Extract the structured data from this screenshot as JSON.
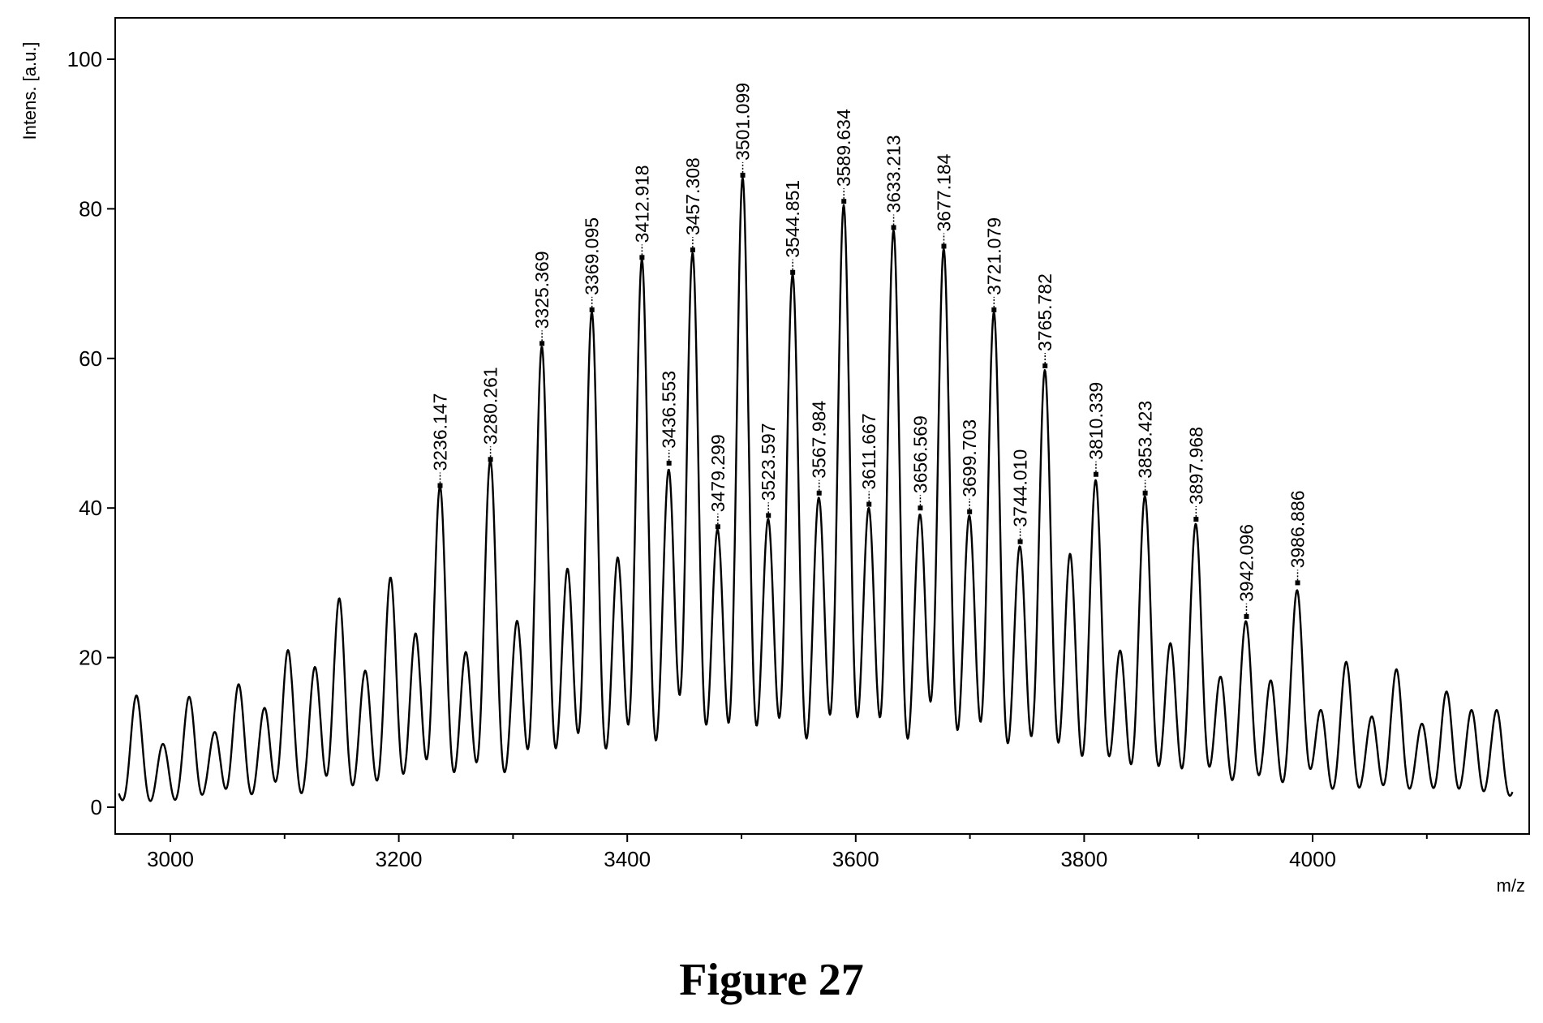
{
  "figure": {
    "caption": "Figure 27"
  },
  "chart_data": {
    "type": "line",
    "xlabel": "m/z",
    "ylabel": "Intens. [a.u.]",
    "xlim": [
      2955,
      4175
    ],
    "ylim": [
      -3,
      105
    ],
    "x_ticks": [
      3000,
      3200,
      3400,
      3600,
      3800,
      4000
    ],
    "y_ticks": [
      0,
      20,
      40,
      60,
      80,
      100
    ],
    "grid": false,
    "labeled_peaks": [
      {
        "label": "3236.147",
        "x": 3236.147,
        "y": 43
      },
      {
        "label": "3280.261",
        "x": 3280.261,
        "y": 46.5
      },
      {
        "label": "3325.369",
        "x": 3325.369,
        "y": 62
      },
      {
        "label": "3369.095",
        "x": 3369.095,
        "y": 66.5
      },
      {
        "label": "3412.918",
        "x": 3412.918,
        "y": 73.5
      },
      {
        "label": "3436.553",
        "x": 3436.553,
        "y": 46
      },
      {
        "label": "3457.308",
        "x": 3457.308,
        "y": 74.5
      },
      {
        "label": "3479.299",
        "x": 3479.299,
        "y": 37.5
      },
      {
        "label": "3501.099",
        "x": 3501.099,
        "y": 84.5
      },
      {
        "label": "3523.597",
        "x": 3523.597,
        "y": 39
      },
      {
        "label": "3544.851",
        "x": 3544.851,
        "y": 71.5
      },
      {
        "label": "3567.984",
        "x": 3567.984,
        "y": 42
      },
      {
        "label": "3589.634",
        "x": 3589.634,
        "y": 81
      },
      {
        "label": "3611.667",
        "x": 3611.667,
        "y": 40.5
      },
      {
        "label": "3633.213",
        "x": 3633.213,
        "y": 77.5
      },
      {
        "label": "3656.569",
        "x": 3656.569,
        "y": 40
      },
      {
        "label": "3677.184",
        "x": 3677.184,
        "y": 75
      },
      {
        "label": "3699.703",
        "x": 3699.703,
        "y": 39.5
      },
      {
        "label": "3721.079",
        "x": 3721.079,
        "y": 66.5
      },
      {
        "label": "3744.010",
        "x": 3744.01,
        "y": 35.5
      },
      {
        "label": "3765.782",
        "x": 3765.782,
        "y": 59
      },
      {
        "label": "3810.339",
        "x": 3810.339,
        "y": 44.5
      },
      {
        "label": "3853.423",
        "x": 3853.423,
        "y": 42
      },
      {
        "label": "3897.968",
        "x": 3897.968,
        "y": 38.5
      },
      {
        "label": "3942.096",
        "x": 3942.096,
        "y": 25.5
      },
      {
        "label": "3986.886",
        "x": 3986.886,
        "y": 30
      }
    ],
    "minor_peaks": [
      {
        "x": 2970,
        "y": 15
      },
      {
        "x": 2994,
        "y": 8.5
      },
      {
        "x": 3017,
        "y": 15
      },
      {
        "x": 3040,
        "y": 10.5
      },
      {
        "x": 3060,
        "y": 16.5
      },
      {
        "x": 3083,
        "y": 13.5
      },
      {
        "x": 3103,
        "y": 21
      },
      {
        "x": 3127,
        "y": 19
      },
      {
        "x": 3148,
        "y": 28
      },
      {
        "x": 3171,
        "y": 18.5
      },
      {
        "x": 3193,
        "y": 31
      },
      {
        "x": 3215,
        "y": 23.5
      },
      {
        "x": 3259,
        "y": 21
      },
      {
        "x": 3304,
        "y": 25.5
      },
      {
        "x": 3348,
        "y": 32.5
      },
      {
        "x": 3392,
        "y": 34
      },
      {
        "x": 3788,
        "y": 34.5
      },
      {
        "x": 3832,
        "y": 21.5
      },
      {
        "x": 3876,
        "y": 22.5
      },
      {
        "x": 3920,
        "y": 18
      },
      {
        "x": 3964,
        "y": 17.5
      },
      {
        "x": 4008,
        "y": 13.5
      },
      {
        "x": 4030,
        "y": 20
      },
      {
        "x": 4053,
        "y": 13
      },
      {
        "x": 4074,
        "y": 19
      },
      {
        "x": 4097,
        "y": 12
      },
      {
        "x": 4118,
        "y": 16
      },
      {
        "x": 4140,
        "y": 13.5
      },
      {
        "x": 4162,
        "y": 13.5
      }
    ],
    "baseline_y": 4
  }
}
